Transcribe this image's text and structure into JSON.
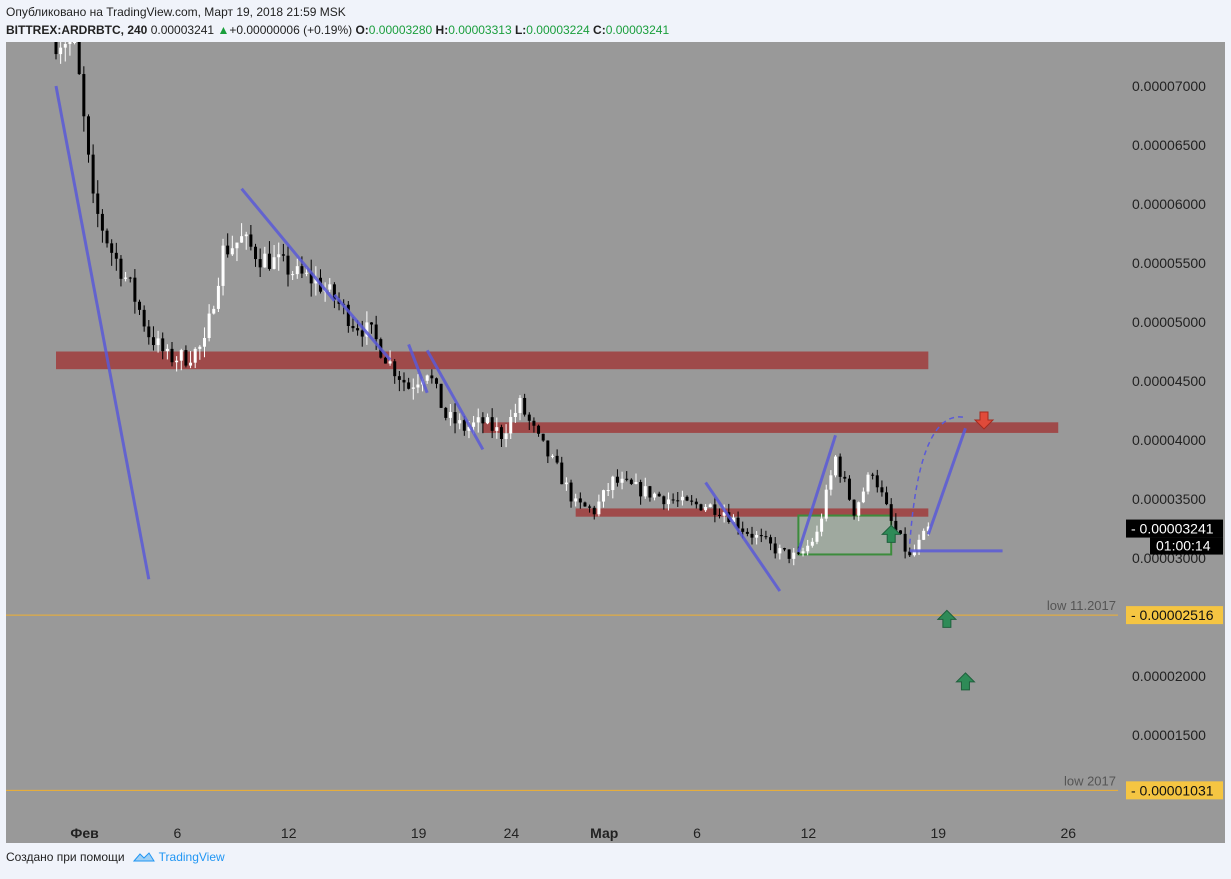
{
  "header": {
    "published": "Опубликовано на TradingView.com, Март 19, 2018 21:59 MSK",
    "symbol": "BITTREX:ARDRBTC, 240",
    "last": "0.00003241",
    "arrow": "▲",
    "change": "+0.00000006 (+0.19%)",
    "o_label": "O:",
    "o_val": "0.00003280",
    "h_label": "H:",
    "h_val": "0.00003313",
    "l_label": "L:",
    "l_val": "0.00003224",
    "c_label": "C:",
    "c_val": "0.00003241"
  },
  "footer": {
    "created": "Создано при помощи",
    "brand": "TradingView"
  },
  "colors": {
    "background": "#999999",
    "candle_up": "#ffffff",
    "candle_down": "#000000",
    "zone": "#a03c3c",
    "trendline": "#5a5ad8",
    "hline": "#f0b030",
    "box": "#3c8c3c",
    "arrow_up": "#2e8b57",
    "arrow_down": "#e04a3a",
    "brand": "#2196f3"
  },
  "chart_data": {
    "type": "candlestick",
    "symbol": "BITTREX:ARDRBTC",
    "timeframe": "240",
    "x_ticks": [
      "Фев",
      "6",
      "12",
      "19",
      "24",
      "Мар",
      "6",
      "12",
      "19",
      "26"
    ],
    "y_ticks": [
      "0.00001500",
      "0.00002000",
      "0.00003000",
      "0.00003500",
      "0.00004000",
      "0.00004500",
      "0.00005000",
      "0.00005500",
      "0.00006000",
      "0.00006500",
      "0.00007000"
    ],
    "ylim": [
      1.1e-05,
      7.45e-05
    ],
    "last_price_label": "0.00003241",
    "countdown_label": "01:00:14",
    "price_path": [
      [
        "2018-02-01",
        7.4e-05
      ],
      [
        "2018-02-02",
        6e-05
      ],
      [
        "2018-02-03",
        5.6e-05
      ],
      [
        "2018-02-04",
        5.3e-05
      ],
      [
        "2018-02-05",
        4.9e-05
      ],
      [
        "2018-02-06",
        4.7e-05
      ],
      [
        "2018-02-07",
        4.7e-05
      ],
      [
        "2018-02-08",
        4.8e-05
      ],
      [
        "2018-02-09",
        5.6e-05
      ],
      [
        "2018-02-10",
        5.7e-05
      ],
      [
        "2018-02-11",
        5.55e-05
      ],
      [
        "2018-02-12",
        5.5e-05
      ],
      [
        "2018-02-13",
        5.4e-05
      ],
      [
        "2018-02-14",
        5.35e-05
      ],
      [
        "2018-02-15",
        5.2e-05
      ],
      [
        "2018-02-16",
        5e-05
      ],
      [
        "2018-02-17",
        4.9e-05
      ],
      [
        "2018-02-18",
        4.65e-05
      ],
      [
        "2018-02-19",
        4.45e-05
      ],
      [
        "2018-02-20",
        4.6e-05
      ],
      [
        "2018-02-21",
        4.2e-05
      ],
      [
        "2018-02-22",
        4.1e-05
      ],
      [
        "2018-02-23",
        4.15e-05
      ],
      [
        "2018-02-24",
        4.05e-05
      ],
      [
        "2018-02-25",
        4.3e-05
      ],
      [
        "2018-02-26",
        4e-05
      ],
      [
        "2018-02-27",
        3.75e-05
      ],
      [
        "2018-02-28",
        3.45e-05
      ],
      [
        "2018-03-01",
        3.4e-05
      ],
      [
        "2018-03-02",
        3.65e-05
      ],
      [
        "2018-03-03",
        3.6e-05
      ],
      [
        "2018-03-04",
        3.55e-05
      ],
      [
        "2018-03-05",
        3.5e-05
      ],
      [
        "2018-03-06",
        3.45e-05
      ],
      [
        "2018-03-07",
        3.45e-05
      ],
      [
        "2018-03-08",
        3.4e-05
      ],
      [
        "2018-03-09",
        3.25e-05
      ],
      [
        "2018-03-10",
        3.15e-05
      ],
      [
        "2018-03-11",
        3.05e-05
      ],
      [
        "2018-03-12",
        3e-05
      ],
      [
        "2018-03-13",
        3.2e-05
      ],
      [
        "2018-03-14",
        3.85e-05
      ],
      [
        "2018-03-15",
        3.4e-05
      ],
      [
        "2018-03-16",
        3.75e-05
      ],
      [
        "2018-03-17",
        3.3e-05
      ],
      [
        "2018-03-18",
        3e-05
      ],
      [
        "2018-03-19",
        3.24e-05
      ]
    ],
    "resistance_zones": [
      {
        "x_start": "2018-01-31",
        "x_end": "2018-03-19",
        "y_low": 4.6e-05,
        "y_high": 4.75e-05
      },
      {
        "x_start": "2018-02-23",
        "x_end": "2018-03-26",
        "y_low": 4.06e-05,
        "y_high": 4.15e-05
      },
      {
        "x_start": "2018-02-28",
        "x_end": "2018-03-19",
        "y_low": 3.35e-05,
        "y_high": 3.42e-05
      }
    ],
    "horizontal_lines": [
      {
        "label": "low 11.2017",
        "value": 2.516e-05,
        "value_label": "0.00002516"
      },
      {
        "label": "low 2017",
        "value": 1.031e-05,
        "value_label": "0.00001031"
      }
    ],
    "trendlines": [
      {
        "x1": "2018-01-31",
        "y1": 7e-05,
        "x2": "2018-02-05",
        "y2": 2.82e-05
      },
      {
        "x1": "2018-02-10",
        "y1": 6.13e-05,
        "x2": "2018-02-15",
        "y2": 5.18e-05
      },
      {
        "x1": "2018-02-15",
        "y1": 5.23e-05,
        "x2": "2018-02-18",
        "y2": 4.68e-05
      },
      {
        "x1": "2018-02-19",
        "y1": 4.81e-05,
        "x2": "2018-02-20",
        "y2": 4.4e-05
      },
      {
        "x1": "2018-02-20",
        "y1": 4.76e-05,
        "x2": "2018-02-23",
        "y2": 3.92e-05
      },
      {
        "x1": "2018-03-07",
        "y1": 3.64e-05,
        "x2": "2018-03-11",
        "y2": 2.72e-05
      },
      {
        "x1": "2018-03-12",
        "y1": 3.05e-05,
        "x2": "2018-03-14",
        "y2": 4.04e-05
      },
      {
        "x1": "2018-03-18",
        "y1": 3.06e-05,
        "x2": "2018-03-23",
        "y2": 3.06e-05
      },
      {
        "x1": "2018-03-19",
        "y1": 3.2e-05,
        "x2": "2018-03-21",
        "y2": 4.1e-05
      }
    ],
    "projection_curve": {
      "from": [
        "2018-03-18",
        3.12e-05
      ],
      "to": [
        "2018-03-21",
        4.19e-05
      ]
    },
    "accumulation_box": {
      "x_start": "2018-03-12",
      "x_end": "2018-03-17",
      "y_low": 3.03e-05,
      "y_high": 3.36e-05
    },
    "arrows": [
      {
        "direction": "down",
        "x": "2018-03-22",
        "y": 4.17e-05
      },
      {
        "direction": "up",
        "x": "2018-03-20",
        "y": 2.48e-05
      },
      {
        "direction": "up",
        "x": "2018-03-21",
        "y": 1.95e-05
      },
      {
        "direction": "up",
        "x": "2018-03-17",
        "y": 3.2e-05
      }
    ]
  }
}
